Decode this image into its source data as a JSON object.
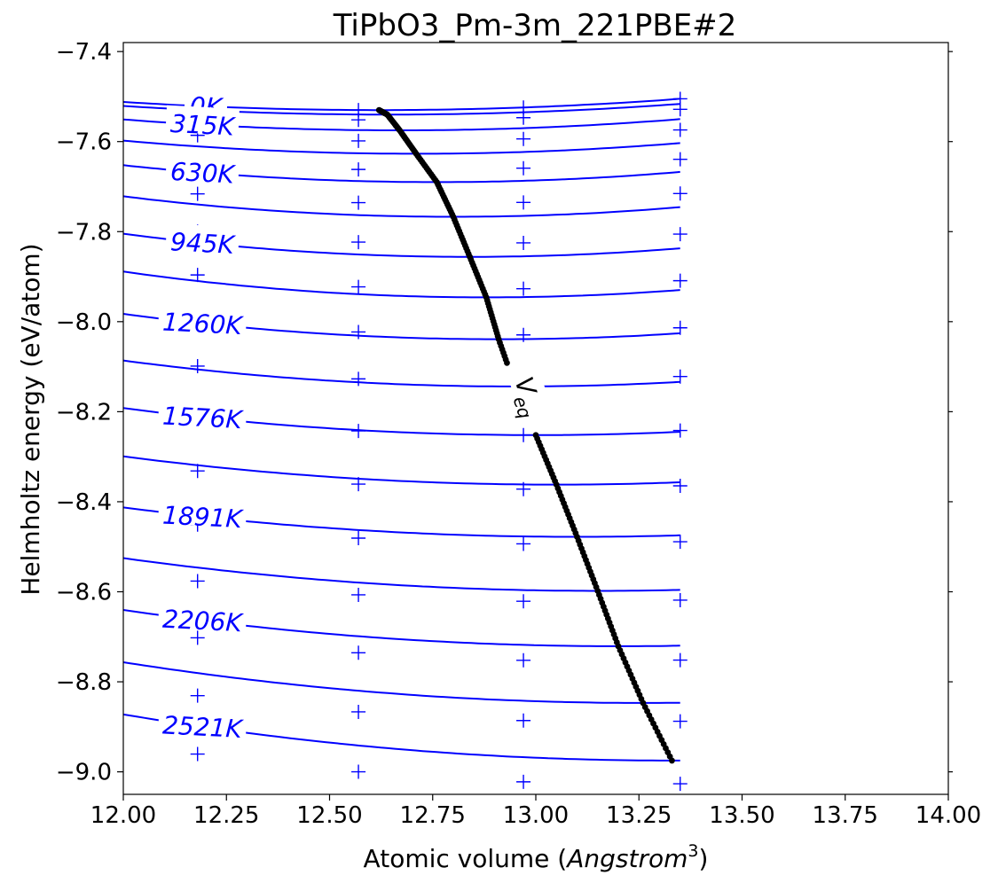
{
  "chart_data": {
    "type": "line",
    "title": "TiPbO3_Pm-3m_221PBE#2",
    "xlabel_prefix": "Atomic volume (",
    "xlabel_unit": "Angstrom",
    "xlabel_exp": "3",
    "xlabel_suffix": ")",
    "ylabel": "Helmholtz energy (eV/atom)",
    "xlim": [
      12.0,
      14.0
    ],
    "ylim": [
      -9.05,
      -7.38
    ],
    "x_ticks": [
      12.0,
      12.25,
      12.5,
      12.75,
      13.0,
      13.25,
      13.5,
      13.75,
      14.0
    ],
    "x_tick_labels": [
      "12.00",
      "12.25",
      "12.50",
      "12.75",
      "13.00",
      "13.25",
      "13.50",
      "13.75",
      "14.00"
    ],
    "y_ticks": [
      -9.0,
      -8.8,
      -8.6,
      -8.4,
      -8.2,
      -8.0,
      -7.8,
      -7.6,
      -7.4
    ],
    "y_tick_labels": [
      "−9.0",
      "−8.8",
      "−8.6",
      "−8.4",
      "−8.2",
      "−8.0",
      "−7.8",
      "−7.6",
      "−7.4"
    ],
    "grid": false,
    "curve_color": "#0000ff",
    "marker_color": "#0000ff",
    "veq_color": "#000000",
    "curve_x_range": [
      12.0,
      13.35
    ],
    "marker_volumes": [
      12.18,
      12.57,
      12.97,
      13.35
    ],
    "isotherms": [
      {
        "T": 0,
        "min_v": 12.62,
        "min_f": -7.53,
        "curv": 0.047,
        "label": ""
      },
      {
        "T": 157,
        "min_v": 12.64,
        "min_f": -7.54,
        "curv": 0.047,
        "label": ""
      },
      {
        "T": 315,
        "min_v": 12.67,
        "min_f": -7.575,
        "curv": 0.054,
        "label": "315K"
      },
      {
        "T": 472,
        "min_v": 12.71,
        "min_f": -7.627,
        "curv": 0.058,
        "label": ""
      },
      {
        "T": 630,
        "min_v": 12.76,
        "min_f": -7.69,
        "curv": 0.065,
        "label": "630K"
      },
      {
        "T": 787,
        "min_v": 12.8,
        "min_f": -7.767,
        "curv": 0.071,
        "label": ""
      },
      {
        "T": 945,
        "min_v": 12.84,
        "min_f": -7.856,
        "curv": 0.073,
        "label": "945K"
      },
      {
        "T": 1102,
        "min_v": 12.88,
        "min_f": -7.946,
        "curv": 0.074,
        "label": ""
      },
      {
        "T": 1260,
        "min_v": 12.91,
        "min_f": -8.039,
        "curv": 0.068,
        "label": "1260K"
      },
      {
        "T": 1418,
        "min_v": 12.95,
        "min_f": -8.144,
        "curv": 0.064,
        "label": ""
      },
      {
        "T": 1576,
        "min_v": 13.0,
        "min_f": -8.252,
        "curv": 0.06,
        "label": "1576K"
      },
      {
        "T": 1733,
        "min_v": 13.05,
        "min_f": -8.362,
        "curv": 0.057,
        "label": ""
      },
      {
        "T": 1891,
        "min_v": 13.1,
        "min_f": -8.478,
        "curv": 0.054,
        "label": "1891K"
      },
      {
        "T": 2048,
        "min_v": 13.15,
        "min_f": -8.598,
        "curv": 0.055,
        "label": ""
      },
      {
        "T": 2206,
        "min_v": 13.2,
        "min_f": -8.721,
        "curv": 0.056,
        "label": "2206K"
      },
      {
        "T": 2363,
        "min_v": 13.26,
        "min_f": -8.847,
        "curv": 0.057,
        "label": ""
      },
      {
        "T": 2521,
        "min_v": 13.33,
        "min_f": -8.975,
        "curv": 0.058,
        "label": "2521K"
      }
    ],
    "top_label": "0K",
    "veq_label": "V",
    "veq_subscript": "eq"
  }
}
